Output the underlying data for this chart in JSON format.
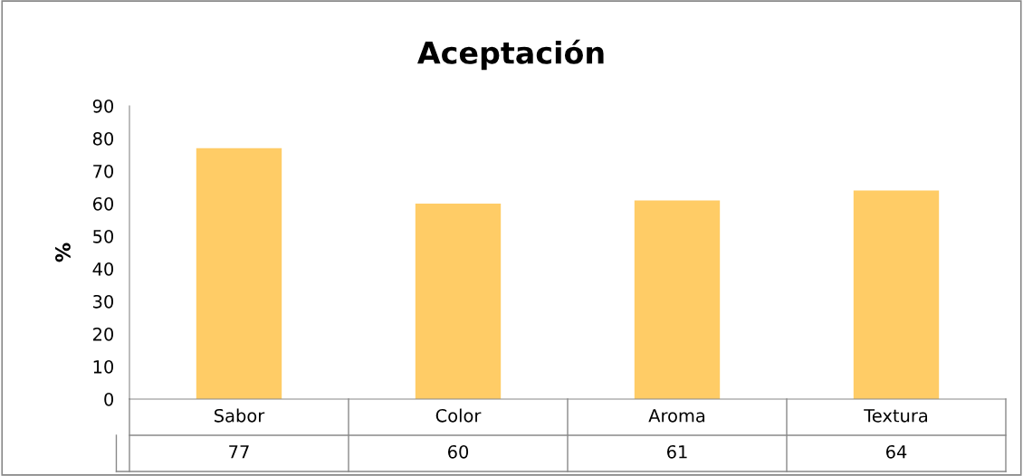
{
  "chart_data": {
    "type": "bar",
    "title": "Aceptación",
    "ylabel": "%",
    "categories": [
      "Sabor",
      "Color",
      "Aroma",
      "Textura"
    ],
    "values": [
      77,
      60,
      61,
      64
    ],
    "color": "#ffcc66",
    "ylim": [
      0,
      90
    ],
    "yticks": [
      0,
      10,
      20,
      30,
      40,
      50,
      60,
      70,
      80,
      90
    ],
    "grid": false,
    "data_labels": true
  }
}
